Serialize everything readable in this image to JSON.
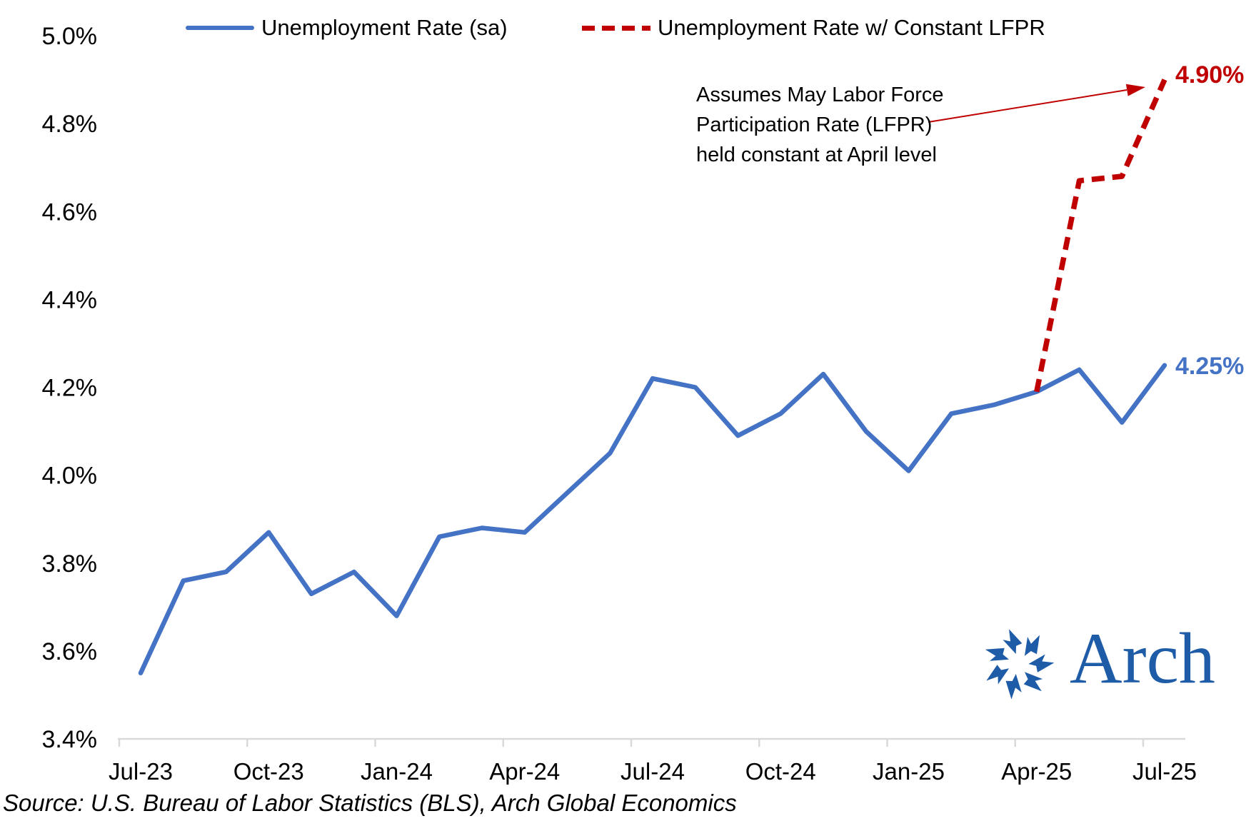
{
  "chart_data": {
    "type": "line",
    "title": "",
    "xlabel": "",
    "ylabel": "",
    "grid": false,
    "legend_position": "top",
    "ylim": [
      3.4,
      5.0
    ],
    "categories": [
      "Jul-23",
      "Aug-23",
      "Sep-23",
      "Oct-23",
      "Nov-23",
      "Dec-23",
      "Jan-24",
      "Feb-24",
      "Mar-24",
      "Apr-24",
      "May-24",
      "Jun-24",
      "Jul-24",
      "Aug-24",
      "Sep-24",
      "Oct-24",
      "Nov-24",
      "Dec-24",
      "Jan-25",
      "Feb-25",
      "Mar-25",
      "Apr-25",
      "May-25",
      "Jun-25",
      "Jul-25"
    ],
    "x_tick_labels": [
      "Jul-23",
      "Oct-23",
      "Jan-24",
      "Apr-24",
      "Jul-24",
      "Oct-24",
      "Jan-25",
      "Apr-25",
      "Jul-25"
    ],
    "y_tick_labels": [
      "5.0%",
      "4.8%",
      "4.6%",
      "4.4%",
      "4.2%",
      "4.0%",
      "3.8%",
      "3.6%",
      "3.4%"
    ],
    "y_tick_values": [
      5.0,
      4.8,
      4.6,
      4.4,
      4.2,
      4.0,
      3.8,
      3.6,
      3.4
    ],
    "series": [
      {
        "name": "Unemployment Rate (sa)",
        "color": "#4472C4",
        "style": "solid",
        "end_label": "4.25%",
        "values": [
          3.55,
          3.76,
          3.78,
          3.87,
          3.73,
          3.78,
          3.68,
          3.86,
          3.88,
          3.87,
          3.96,
          4.05,
          4.22,
          4.2,
          4.09,
          4.14,
          4.23,
          4.1,
          4.01,
          4.14,
          4.16,
          4.19,
          4.24,
          4.12,
          4.25
        ]
      },
      {
        "name": "Unemployment Rate w/ Constant LFPR",
        "color": "#C00000",
        "style": "dashed",
        "end_label": "4.90%",
        "values": [
          null,
          null,
          null,
          null,
          null,
          null,
          null,
          null,
          null,
          null,
          null,
          null,
          null,
          null,
          null,
          null,
          null,
          null,
          null,
          null,
          null,
          4.19,
          4.67,
          4.68,
          4.9
        ]
      }
    ]
  },
  "annotation": {
    "lines": [
      "Assumes May Labor Force",
      "Participation Rate (LFPR)",
      "held constant at April level"
    ]
  },
  "logo": {
    "text": "Arch"
  },
  "source": {
    "text": "Source: U.S. Bureau of Labor Statistics (BLS), Arch Global Economics"
  },
  "colors": {
    "blue": "#4472C4",
    "red": "#C00000",
    "axis": "#D9D9D9",
    "text": "#000000",
    "logo_blue": "#1E5CA8"
  }
}
